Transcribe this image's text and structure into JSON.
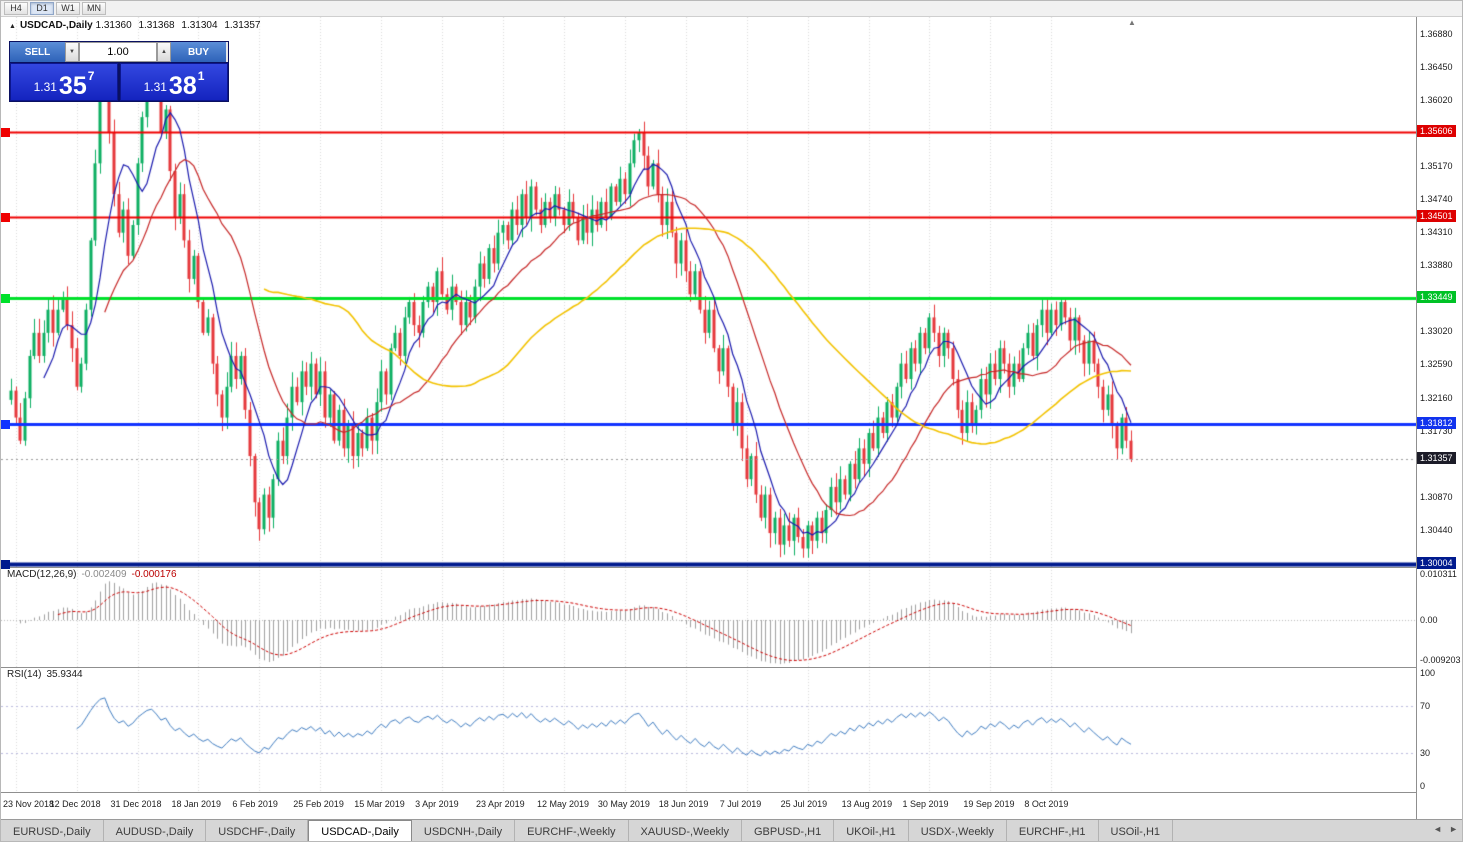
{
  "toolbar": {
    "timeframes": [
      {
        "label": "H4",
        "active": false
      },
      {
        "label": "D1",
        "active": true
      },
      {
        "label": "W1",
        "active": false
      },
      {
        "label": "MN",
        "active": false
      }
    ]
  },
  "icons": {
    "symbol_marker": "▲",
    "shift_marker": "▲",
    "spin_up": "▲",
    "spin_down": "▼",
    "tab_scroll_left": "◄",
    "tab_scroll_right": "►"
  },
  "chart_header": {
    "symbol": "USDCAD-,Daily",
    "open": "1.31360",
    "high": "1.31368",
    "low": "1.31304",
    "close": "1.31357"
  },
  "trade_panel": {
    "sell_label": "SELL",
    "buy_label": "BUY",
    "volume": "1.00",
    "bid": {
      "prefix": "1.31",
      "big": "35",
      "sup": "7"
    },
    "ask": {
      "prefix": "1.31",
      "big": "38",
      "sup": "1"
    }
  },
  "price_axis": {
    "labels": [
      {
        "text": "1.36880",
        "price": 1.3688
      },
      {
        "text": "1.36450",
        "price": 1.3645
      },
      {
        "text": "1.36020",
        "price": 1.3602
      },
      {
        "text": "1.35170",
        "price": 1.3517
      },
      {
        "text": "1.34740",
        "price": 1.3474
      },
      {
        "text": "1.34310",
        "price": 1.3431
      },
      {
        "text": "1.33880",
        "price": 1.3388
      },
      {
        "text": "1.33020",
        "price": 1.3302
      },
      {
        "text": "1.32590",
        "price": 1.3259
      },
      {
        "text": "1.32160",
        "price": 1.3216
      },
      {
        "text": "1.31730",
        "price": 1.3173
      },
      {
        "text": "1.30870",
        "price": 1.3087
      },
      {
        "text": "1.30440",
        "price": 1.3044
      }
    ],
    "badges": [
      {
        "text": "1.35606",
        "price": 1.35606,
        "bg": "#dd0000"
      },
      {
        "text": "1.34501",
        "price": 1.34501,
        "bg": "#dd0000"
      },
      {
        "text": "1.33449",
        "price": 1.33449,
        "bg": "#00c226"
      },
      {
        "text": "1.31812",
        "price": 1.31812,
        "bg": "#1133ee"
      },
      {
        "text": "1.31357",
        "price": 1.31357,
        "bg": "#1c1c28"
      },
      {
        "text": "1.30004",
        "price": 1.30004,
        "bg": "#001a8e"
      }
    ]
  },
  "macd": {
    "label": "MACD(12,26,9)",
    "value1": "-0.002409",
    "value2": "-0.000176",
    "axis_top": "0.010311",
    "axis_zero": "0.00",
    "axis_bottom": "-0.009203",
    "scale": {
      "max": 0.0115,
      "min": -0.0102
    }
  },
  "rsi": {
    "label": "RSI(14)",
    "value": "35.9344",
    "axis_labels": [
      {
        "text": "100",
        "v": 100
      },
      {
        "text": "70",
        "v": 70
      },
      {
        "text": "30",
        "v": 30
      },
      {
        "text": "0",
        "v": 0
      }
    ],
    "levels": [
      70,
      30
    ]
  },
  "date_axis": [
    "23 Nov 2018",
    "12 Dec 2018",
    "31 Dec 2018",
    "18 Jan 2019",
    "6 Feb 2019",
    "25 Feb 2019",
    "15 Mar 2019",
    "3 Apr 2019",
    "23 Apr 2019",
    "12 May 2019",
    "30 May 2019",
    "18 Jun 2019",
    "7 Jul 2019",
    "25 Jul 2019",
    "13 Aug 2019",
    "1 Sep 2019",
    "19 Sep 2019",
    "8 Oct 2019"
  ],
  "tabs": {
    "items": [
      "EURUSD-,Daily",
      "AUDUSD-,Daily",
      "USDCHF-,Daily",
      "USDCAD-,Daily",
      "USDCNH-,Daily",
      "EURCHF-,Weekly",
      "XAUUSD-,Weekly",
      "GBPUSD-,H1",
      "UKOil-,H1",
      "USDX-,Weekly",
      "EURCHF-,H1",
      "USOil-,H1"
    ],
    "active_index": 3
  },
  "chart_data": {
    "type": "candlestick",
    "symbol": "USDCAD",
    "timeframe": "Daily",
    "price_scale": {
      "max": 1.371,
      "min": 1.2996
    },
    "label_indices": [
      1,
      14,
      27,
      40,
      53,
      66,
      79,
      92,
      105,
      118,
      131,
      144,
      157,
      170,
      183,
      196,
      209,
      222
    ],
    "closes": [
      1.3225,
      1.319,
      1.316,
      1.3215,
      1.327,
      1.33,
      1.327,
      1.33,
      1.333,
      1.33,
      1.333,
      1.3345,
      1.331,
      1.328,
      1.323,
      1.326,
      1.333,
      1.342,
      1.352,
      1.362,
      1.3655,
      1.356,
      1.348,
      1.343,
      1.346,
      1.34,
      1.344,
      1.352,
      1.358,
      1.364,
      1.3665,
      1.362,
      1.356,
      1.359,
      1.351,
      1.345,
      1.348,
      1.342,
      1.337,
      1.34,
      1.334,
      1.33,
      1.332,
      1.326,
      1.322,
      1.319,
      1.323,
      1.327,
      1.324,
      1.327,
      1.32,
      1.314,
      1.308,
      1.3045,
      1.309,
      1.306,
      1.311,
      1.316,
      1.314,
      1.319,
      1.323,
      1.321,
      1.325,
      1.323,
      1.326,
      1.322,
      1.325,
      1.319,
      1.322,
      1.316,
      1.32,
      1.315,
      1.318,
      1.314,
      1.317,
      1.315,
      1.319,
      1.316,
      1.321,
      1.325,
      1.322,
      1.328,
      1.33,
      1.327,
      1.332,
      1.334,
      1.331,
      1.33,
      1.334,
      1.336,
      1.334,
      1.338,
      1.335,
      1.333,
      1.336,
      1.334,
      1.331,
      1.334,
      1.332,
      1.336,
      1.339,
      1.337,
      1.341,
      1.339,
      1.343,
      1.344,
      1.342,
      1.346,
      1.344,
      1.348,
      1.345,
      1.349,
      1.346,
      1.344,
      1.347,
      1.345,
      1.348,
      1.346,
      1.344,
      1.347,
      1.345,
      1.342,
      1.345,
      1.343,
      1.346,
      1.344,
      1.347,
      1.345,
      1.349,
      1.347,
      1.35,
      1.348,
      1.352,
      1.355,
      1.356,
      1.353,
      1.349,
      1.352,
      1.348,
      1.344,
      1.347,
      1.343,
      1.339,
      1.342,
      1.338,
      1.335,
      1.338,
      1.333,
      1.33,
      1.333,
      1.328,
      1.325,
      1.328,
      1.323,
      1.318,
      1.321,
      1.315,
      1.311,
      1.314,
      1.309,
      1.306,
      1.309,
      1.304,
      1.306,
      1.3025,
      1.305,
      1.303,
      1.306,
      1.3035,
      1.302,
      1.305,
      1.303,
      1.306,
      1.304,
      1.307,
      1.31,
      1.308,
      1.311,
      1.309,
      1.313,
      1.311,
      1.315,
      1.313,
      1.317,
      1.315,
      1.319,
      1.317,
      1.321,
      1.319,
      1.323,
      1.326,
      1.324,
      1.328,
      1.326,
      1.33,
      1.328,
      1.332,
      1.33,
      1.327,
      1.33,
      1.328,
      1.324,
      1.32,
      1.317,
      1.321,
      1.318,
      1.32,
      1.324,
      1.322,
      1.326,
      1.324,
      1.328,
      1.326,
      1.323,
      1.326,
      1.324,
      1.328,
      1.33,
      1.327,
      1.331,
      1.333,
      1.33,
      1.333,
      1.331,
      1.334,
      1.332,
      1.329,
      1.332,
      1.329,
      1.326,
      1.329,
      1.326,
      1.323,
      1.32,
      1.322,
      1.318,
      1.315,
      1.319,
      1.316,
      1.31357
    ],
    "levels": [
      {
        "price": 1.35606,
        "color": "#ef0000",
        "width": 2
      },
      {
        "price": 1.34501,
        "color": "#ef0000",
        "width": 2
      },
      {
        "price": 1.33449,
        "color": "#00e12b",
        "width": 3
      },
      {
        "price": 1.31812,
        "color": "#1133ff",
        "width": 3
      },
      {
        "price": 1.30004,
        "color": "#001a8e",
        "width": 4
      }
    ],
    "current_price": {
      "price": 1.31357
    },
    "moving_averages": [
      {
        "period": 8,
        "color": "#1a1aae",
        "width": 1.2
      },
      {
        "period": 21,
        "color": "#c62828",
        "width": 1.2
      },
      {
        "period": 55,
        "color": "#f2c200",
        "width": 1.6
      }
    ],
    "colors": {
      "up": "#0caf62",
      "down": "#e5383b",
      "grid": "#d8d8d8",
      "macd_hist": "#a0a0a0",
      "macd_signal": "#cc0000",
      "rsi_line": "#3f7cc0",
      "rsi_levels": "#b9b9dd",
      "bid_line": "#9a9a9a"
    }
  }
}
